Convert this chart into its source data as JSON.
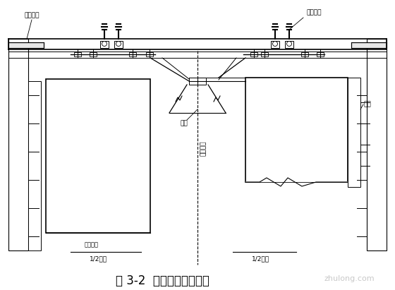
{
  "title": "图 3-2  圆端形翻模总装图",
  "title_fontsize": 12,
  "bg_color": "#ffffff",
  "line_color": "#000000",
  "label_zuoyepingtai": "作业平台",
  "label_tishengxitong": "提升系统",
  "label_dijia": "吊架",
  "label_muban": "模板",
  "label_jiezhouxian": "截面中线",
  "label_chengtaiding": "承台顶面",
  "label_half_bottom": "1/2墩底",
  "label_half_top": "1/2墩顶",
  "watermark": "zhulong.com"
}
